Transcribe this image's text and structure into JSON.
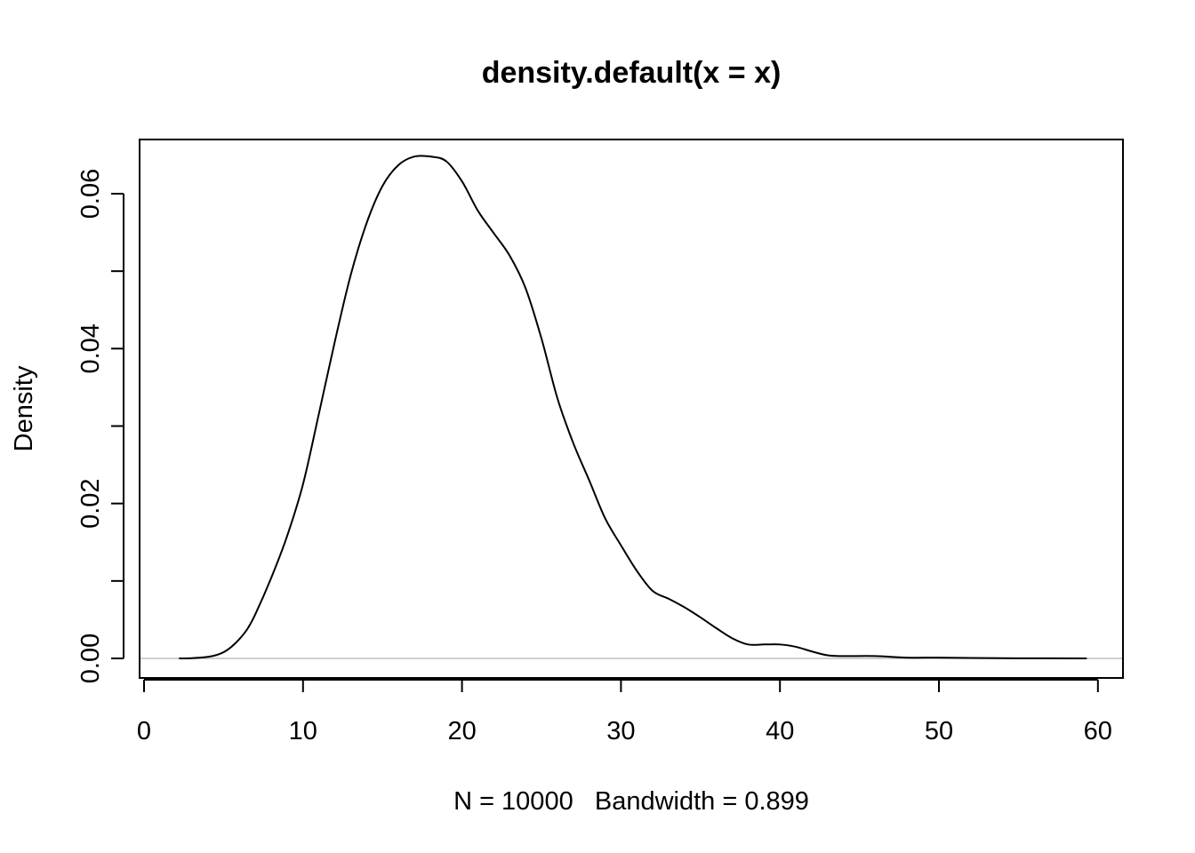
{
  "chart_data": {
    "type": "line",
    "title": "density.default(x = x)",
    "xlabel": "N = 10000   Bandwidth = 0.899",
    "ylabel": "Density",
    "xlim": [
      0,
      60
    ],
    "ylim": [
      0,
      0.065
    ],
    "x_ticks": [
      0,
      10,
      20,
      30,
      40,
      50,
      60
    ],
    "x_tick_labels": [
      "0",
      "10",
      "20",
      "30",
      "40",
      "50",
      "60"
    ],
    "y_ticks": [
      0,
      0.01,
      0.02,
      0.03,
      0.04,
      0.05,
      0.06
    ],
    "y_tick_labels": [
      "0.00",
      "",
      "0.02",
      "",
      "0.04",
      "",
      "0.06"
    ],
    "grid": false,
    "baseline": 0,
    "series": [
      {
        "x": [
          2.2,
          3,
          4,
          4.5,
          5,
          5.5,
          6,
          6.5,
          7,
          8,
          9,
          10,
          11,
          12,
          13,
          14,
          15,
          16,
          17,
          18,
          19,
          20,
          21,
          22,
          23,
          24,
          25,
          26,
          27,
          28,
          29,
          30,
          31,
          32,
          33,
          34,
          35,
          36,
          37,
          38,
          39,
          40,
          41,
          42,
          43,
          44,
          46,
          48,
          50,
          52,
          55,
          59.3
        ],
        "y": [
          0,
          3e-05,
          0.0002,
          0.0004,
          0.0008,
          0.0015,
          0.0025,
          0.0038,
          0.0057,
          0.0104,
          0.0158,
          0.0225,
          0.0316,
          0.0409,
          0.0495,
          0.0562,
          0.061,
          0.0637,
          0.0648,
          0.0648,
          0.0642,
          0.0616,
          0.0578,
          0.0549,
          0.052,
          0.0478,
          0.0413,
          0.0336,
          0.0278,
          0.023,
          0.0181,
          0.0146,
          0.0113,
          0.0087,
          0.0077,
          0.0066,
          0.0053,
          0.0039,
          0.0026,
          0.0018,
          0.0018,
          0.0018,
          0.0015,
          0.0009,
          0.0004,
          0.0003,
          0.0003,
          0.0001,
          0.0001,
          5e-05,
          2e-05,
          0.0
        ]
      }
    ]
  }
}
